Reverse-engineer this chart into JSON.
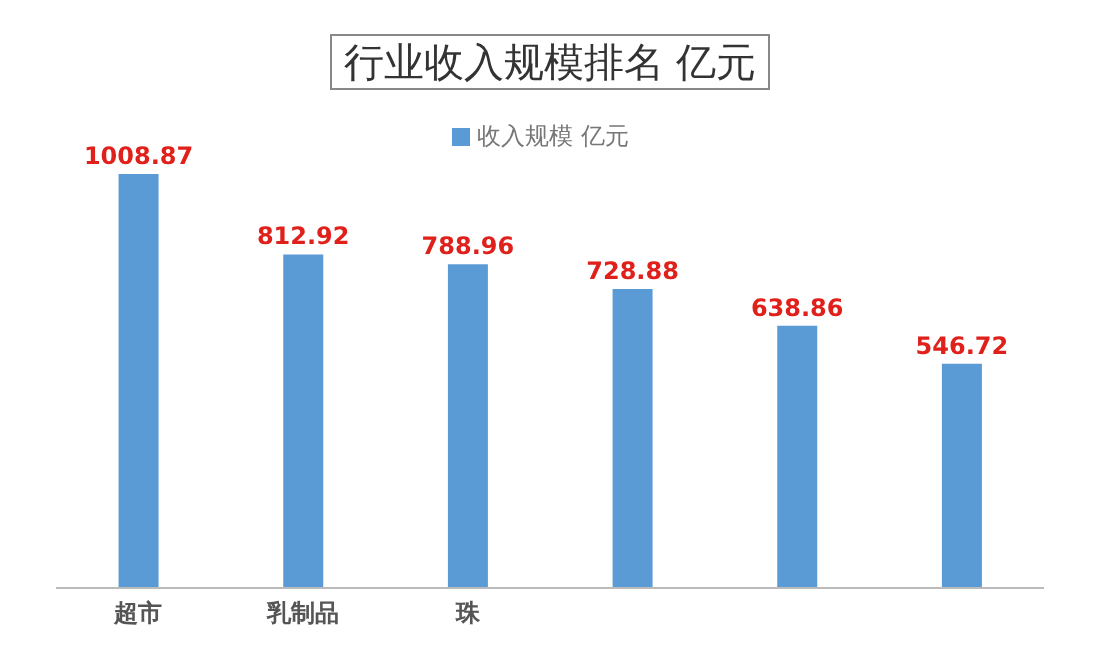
{
  "chart_data": {
    "type": "bar",
    "title": "行业收入规模排名 亿元",
    "categories": [
      "超市",
      "乳制品",
      "珠",
      null,
      null,
      null
    ],
    "series": [
      {
        "name": "收入规模 亿元",
        "color": "#5b9bd5",
        "values": [
          1008.87,
          812.92,
          788.96,
          728.88,
          638.86,
          546.72
        ]
      }
    ],
    "data_labels": true,
    "legend": "top",
    "tick_labels": "x"
  }
}
